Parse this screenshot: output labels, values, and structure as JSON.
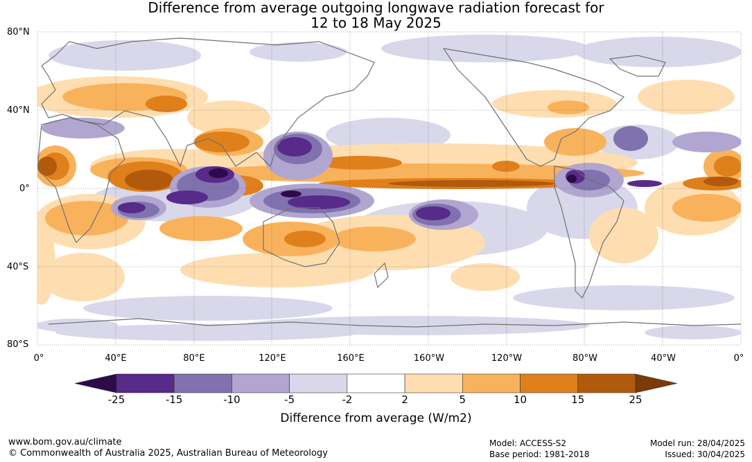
{
  "title_line1": "Difference from average outgoing longwave radiation forecast for",
  "title_line2": "12 to 18 May 2025",
  "lat_labels": [
    "80°N",
    "40°N",
    "0°",
    "40°S",
    "80°S"
  ],
  "lon_labels": [
    "0°",
    "40°E",
    "80°E",
    "120°E",
    "160°E",
    "160°W",
    "120°W",
    "80°W",
    "40°W",
    "0°"
  ],
  "colorbar": {
    "ticks": [
      "-25",
      "-15",
      "-10",
      "-5",
      "-2",
      "2",
      "5",
      "10",
      "15",
      "25"
    ],
    "label": "Difference from average (W/m2)",
    "colors": [
      "#2e0a4a",
      "#582a8a",
      "#8072ae",
      "#b0a6d0",
      "#d9d8ea",
      "#ffffff",
      "#fedeb0",
      "#f9b25c",
      "#e0801b",
      "#b15a0c",
      "#7a3a09"
    ]
  },
  "footer": {
    "url": "www.bom.gov.au/climate",
    "copyright": "© Commonwealth of Australia 2025, Australian Bureau of Meteorology",
    "model": "Model: ACCESS-S2",
    "base_period": "Base period: 1981-2018",
    "model_run": "Model run: 28/04/2025",
    "issued": "Issued: 30/04/2025"
  }
}
